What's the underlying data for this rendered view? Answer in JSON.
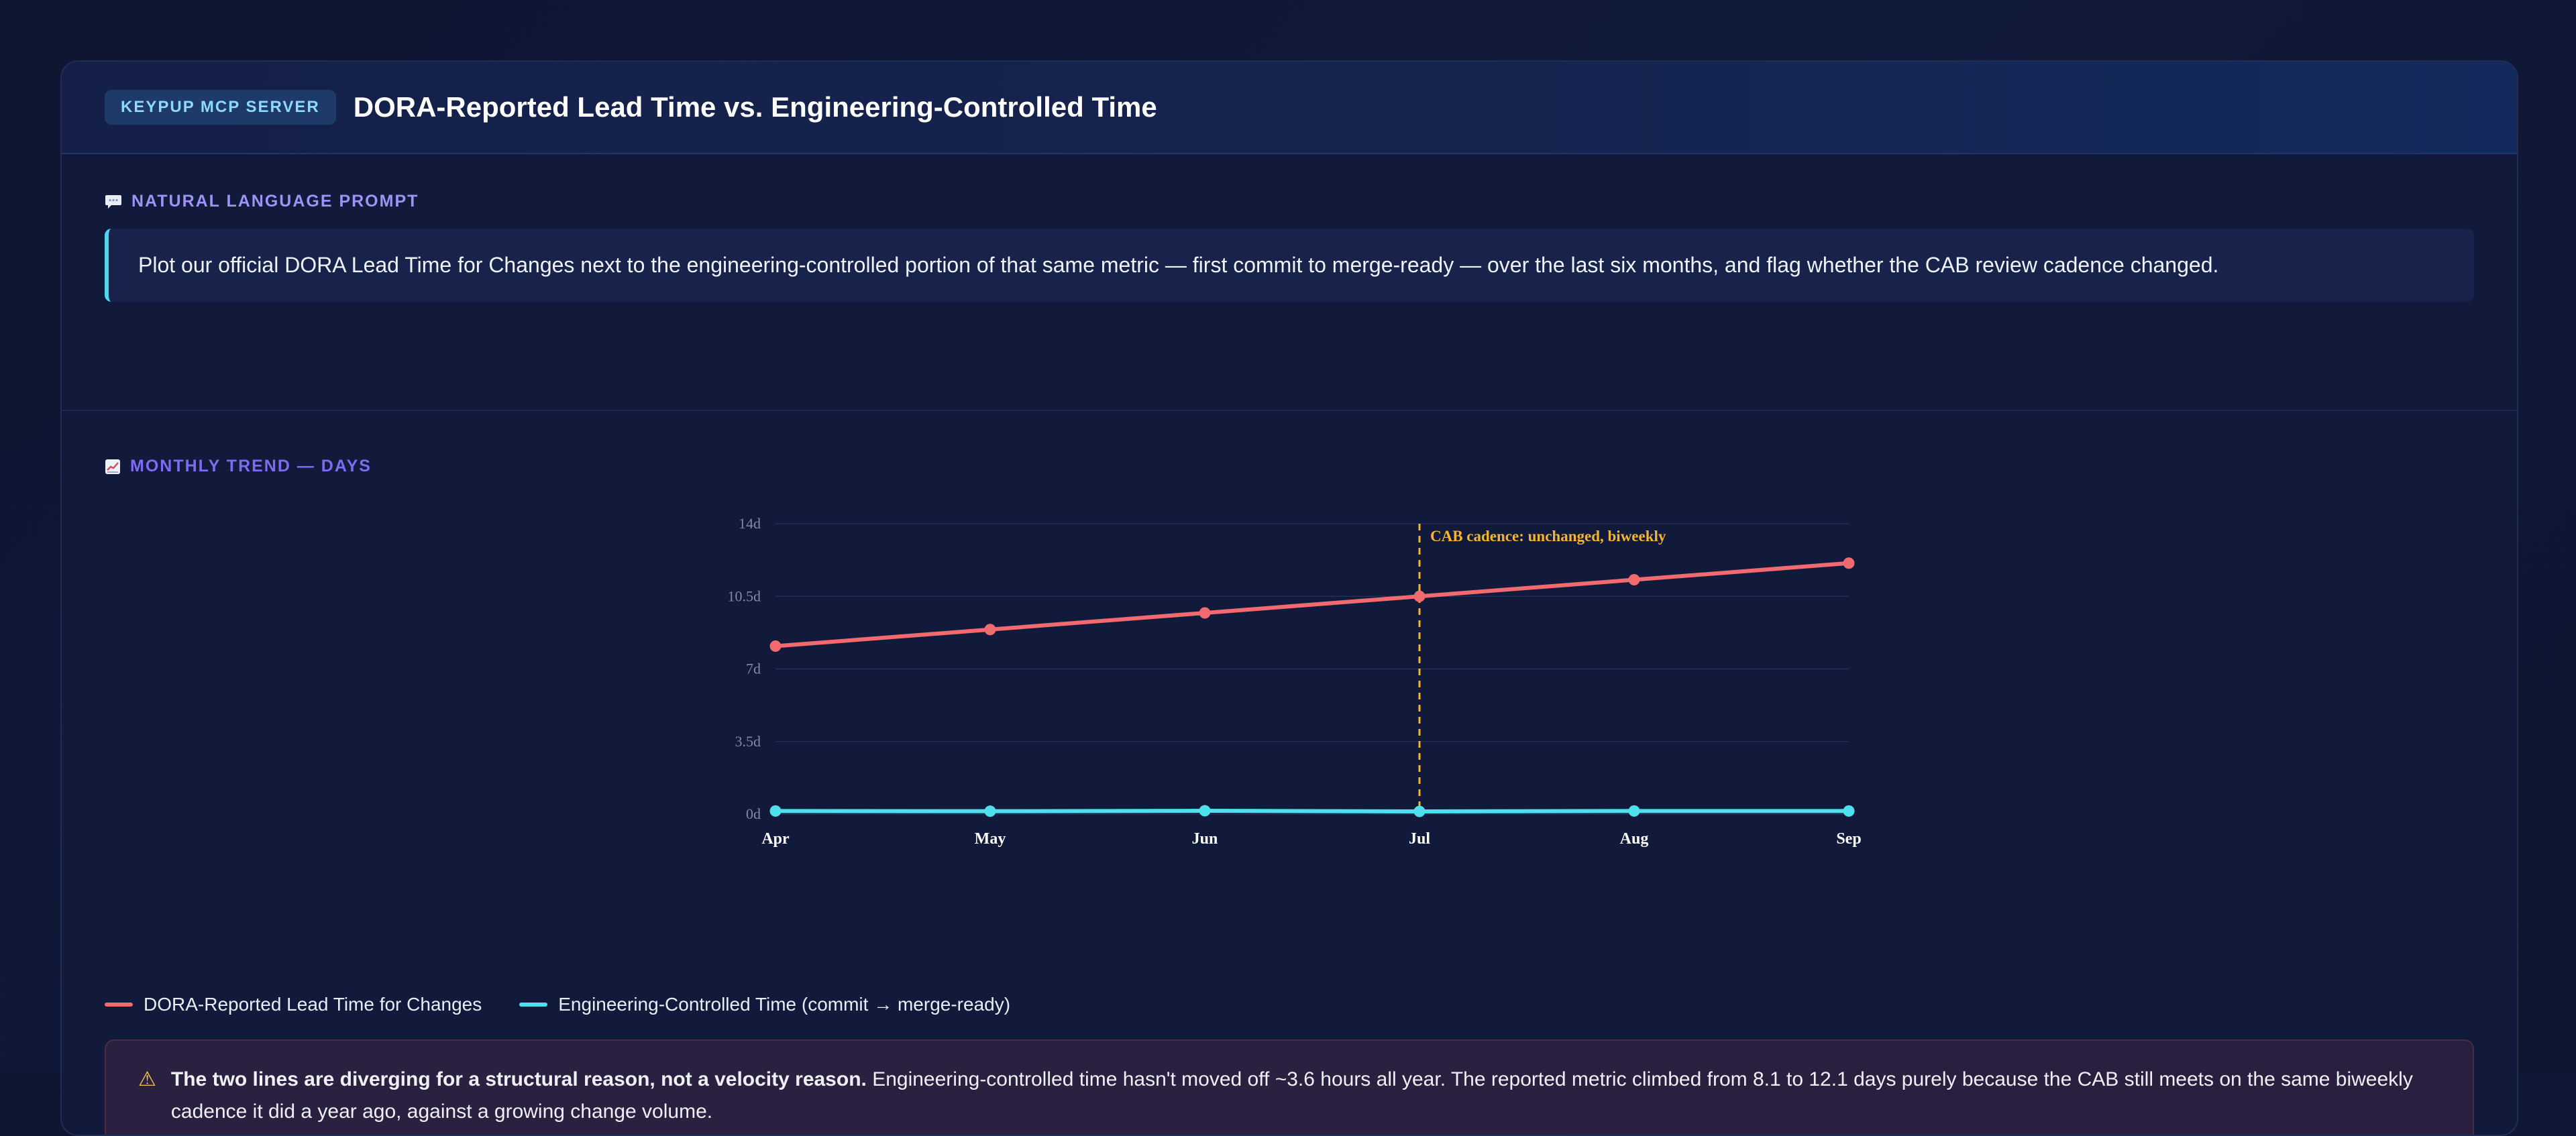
{
  "header": {
    "badge": "KEYPUP MCP SERVER",
    "title": "DORA-Reported Lead Time vs. Engineering-Controlled Time"
  },
  "prompt": {
    "icon": "speech-bubble-icon",
    "label": "NATURAL LANGUAGE PROMPT",
    "text": "Plot our official DORA Lead Time for Changes next to the engineering-controlled portion of that same metric — first commit to merge-ready — over the last six months, and flag whether the CAB review cadence changed."
  },
  "chart_section": {
    "icon": "chart-trend-icon",
    "label": "MONTHLY TREND — DAYS"
  },
  "chart_data": {
    "type": "line",
    "title": "",
    "xlabel": "",
    "ylabel": "",
    "categories": [
      "Apr",
      "May",
      "Jun",
      "Jul",
      "Aug",
      "Sep"
    ],
    "y_ticks": [
      "0d",
      "3.5d",
      "7d",
      "10.5d",
      "14d"
    ],
    "ylim": [
      0,
      14
    ],
    "grid": true,
    "series": [
      {
        "name": "DORA-Reported Lead Time for Changes",
        "color": "#f06a6f",
        "values": [
          8.1,
          8.9,
          9.7,
          10.5,
          11.3,
          12.1
        ]
      },
      {
        "name": "Engineering-Controlled Time (commit → merge-ready)",
        "color": "#4fe0f0",
        "values": [
          0.15,
          0.14,
          0.16,
          0.13,
          0.15,
          0.15
        ]
      }
    ],
    "annotation": {
      "x": "Jul",
      "text": "CAB cadence: unchanged, biweekly",
      "color": "#f5b52a"
    }
  },
  "insight": {
    "icon": "warning-icon",
    "bold": "The two lines are diverging for a structural reason, not a velocity reason.",
    "text": " Engineering-controlled time hasn't moved off ~3.6 hours all year. The reported metric climbed from 8.1 to 12.1 days purely because the CAB still meets on the same biweekly cadence it did a year ago, against a growing change volume."
  }
}
